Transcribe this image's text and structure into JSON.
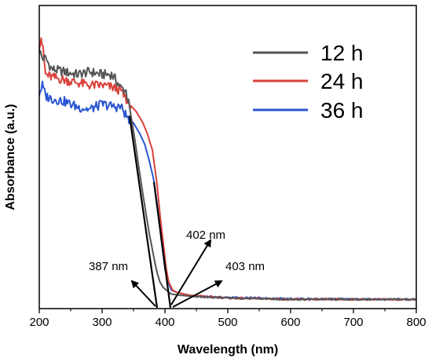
{
  "chart_data": {
    "type": "line",
    "xlabel": "Wavelength (nm)",
    "ylabel": "Absorbance (a.u.)",
    "xlim": [
      200,
      800
    ],
    "ylim": [
      0,
      1
    ],
    "x_ticks": [
      "200",
      "300",
      "400",
      "500",
      "600",
      "700",
      "800"
    ],
    "y_ticks_shown": false,
    "legend_position": "top-right",
    "series": [
      {
        "name": "12 h",
        "color": "#555555",
        "x": [
          200,
          205,
          210,
          215,
          220,
          240,
          260,
          280,
          300,
          315,
          322,
          330,
          338,
          345,
          352,
          360,
          368,
          375,
          380,
          385,
          388,
          392,
          397,
          402,
          410,
          425,
          450,
          500,
          600,
          700,
          800
        ],
        "y": [
          0.93,
          0.9,
          0.9,
          0.88,
          0.86,
          0.85,
          0.84,
          0.85,
          0.84,
          0.84,
          0.82,
          0.79,
          0.78,
          0.7,
          0.6,
          0.47,
          0.35,
          0.25,
          0.19,
          0.13,
          0.1,
          0.07,
          0.05,
          0.04,
          0.025,
          0.02,
          0.015,
          0.01,
          0.005,
          0.005,
          0.005
        ]
      },
      {
        "name": "24 h",
        "color": "#d9413a",
        "x": [
          200,
          203,
          206,
          210,
          220,
          240,
          260,
          280,
          300,
          320,
          330,
          340,
          355,
          365,
          372,
          380,
          387,
          393,
          398,
          402,
          406,
          412,
          420,
          440,
          470,
          500,
          550,
          600,
          700,
          800
        ],
        "y": [
          0.95,
          0.98,
          0.93,
          0.84,
          0.83,
          0.82,
          0.81,
          0.8,
          0.8,
          0.79,
          0.78,
          0.74,
          0.7,
          0.66,
          0.62,
          0.56,
          0.44,
          0.3,
          0.2,
          0.12,
          0.07,
          0.04,
          0.03,
          0.02,
          0.015,
          0.01,
          0.008,
          0.005,
          0.005,
          0.005
        ]
      },
      {
        "name": "36 h",
        "color": "#2a56d1",
        "x": [
          200,
          205,
          210,
          220,
          240,
          260,
          280,
          300,
          320,
          330,
          340,
          350,
          360,
          368,
          375,
          382,
          388,
          394,
          400,
          405,
          410,
          420,
          440,
          470,
          500,
          550,
          600,
          700,
          800
        ],
        "y": [
          0.77,
          0.8,
          0.76,
          0.75,
          0.74,
          0.72,
          0.71,
          0.73,
          0.72,
          0.72,
          0.68,
          0.66,
          0.62,
          0.58,
          0.52,
          0.45,
          0.35,
          0.23,
          0.12,
          0.07,
          0.04,
          0.03,
          0.02,
          0.015,
          0.012,
          0.01,
          0.008,
          0.006,
          0.005
        ]
      }
    ],
    "annotations": [
      {
        "text": "387 nm",
        "wavelength": 387
      },
      {
        "text": "402 nm",
        "wavelength": 402
      },
      {
        "text": "403 nm",
        "wavelength": 403
      }
    ]
  }
}
